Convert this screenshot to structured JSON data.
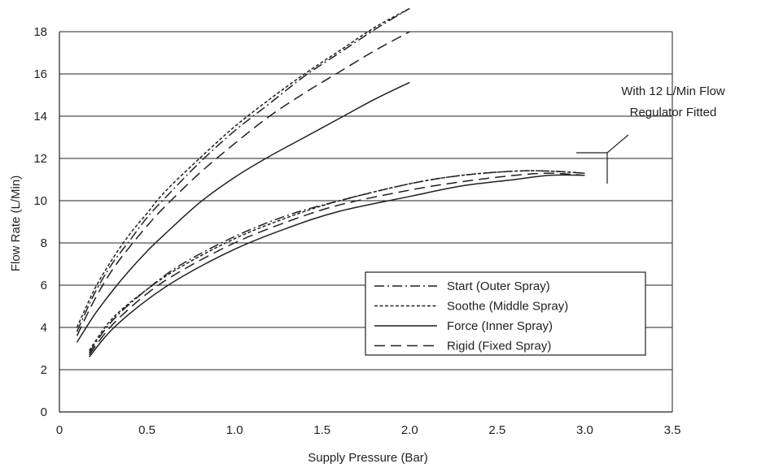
{
  "chart_data": {
    "type": "line",
    "xlabel": "Supply Pressure (Bar)",
    "ylabel": "Flow Rate (L/Min)",
    "xlim": [
      0,
      3.5
    ],
    "ylim": [
      0,
      18
    ],
    "x_ticks": [
      "0",
      "0.5",
      "1.0",
      "1.5",
      "2.0",
      "2.5",
      "3.0",
      "3.5"
    ],
    "y_ticks": [
      "0",
      "2",
      "4",
      "6",
      "8",
      "10",
      "12",
      "14",
      "16",
      "18"
    ],
    "grid": "horizontal",
    "legend_position": "lower-right",
    "annotation": {
      "line1": "With 12 L/Min Flow",
      "line2": "Regulator Fitted"
    },
    "series": [
      {
        "name": "Start (Outer Spray)",
        "style": "dash-dot",
        "group": "unregulated",
        "x": [
          0.1,
          0.2,
          0.3,
          0.4,
          0.5,
          0.6,
          0.8,
          1.0,
          1.2,
          1.4,
          1.6,
          1.8,
          2.0
        ],
        "y": [
          3.8,
          5.6,
          7.0,
          8.1,
          9.2,
          10.1,
          11.8,
          13.3,
          14.6,
          15.9,
          17.0,
          18.1,
          19.1
        ]
      },
      {
        "name": "Soothe (Middle Spray)",
        "style": "dotted",
        "group": "unregulated",
        "x": [
          0.1,
          0.2,
          0.3,
          0.4,
          0.5,
          0.6,
          0.8,
          1.0,
          1.2,
          1.4,
          1.6,
          1.8,
          2.0
        ],
        "y": [
          4.0,
          5.8,
          7.2,
          8.4,
          9.4,
          10.4,
          12.0,
          13.5,
          14.8,
          16.0,
          17.1,
          18.2,
          19.1
        ]
      },
      {
        "name": "Force (Inner Spray)",
        "style": "solid",
        "group": "unregulated",
        "x": [
          0.1,
          0.2,
          0.3,
          0.4,
          0.5,
          0.6,
          0.8,
          1.0,
          1.2,
          1.4,
          1.6,
          1.8,
          2.0
        ],
        "y": [
          3.3,
          4.6,
          5.7,
          6.7,
          7.6,
          8.4,
          9.9,
          11.1,
          12.1,
          13.0,
          13.9,
          14.8,
          15.6
        ]
      },
      {
        "name": "Rigid (Fixed Spray)",
        "style": "dashed",
        "group": "unregulated",
        "x": [
          0.1,
          0.2,
          0.3,
          0.4,
          0.5,
          0.6,
          0.8,
          1.0,
          1.2,
          1.4,
          1.6,
          1.8,
          2.0
        ],
        "y": [
          3.6,
          5.3,
          6.7,
          7.8,
          8.8,
          9.7,
          11.3,
          12.7,
          14.0,
          15.1,
          16.1,
          17.1,
          18.0
        ]
      },
      {
        "name": "Start (Outer Spray)",
        "style": "dash-dot",
        "group": "regulated",
        "x": [
          0.17,
          0.3,
          0.5,
          0.7,
          1.0,
          1.3,
          1.6,
          2.0,
          2.3,
          2.6,
          2.8,
          3.0
        ],
        "y": [
          2.8,
          4.3,
          5.8,
          7.0,
          8.3,
          9.3,
          10.0,
          10.8,
          11.2,
          11.4,
          11.4,
          11.3
        ]
      },
      {
        "name": "Soothe (Middle Spray)",
        "style": "dotted",
        "group": "regulated",
        "x": [
          0.17,
          0.3,
          0.5,
          0.7,
          1.0,
          1.3,
          1.6,
          2.0,
          2.3,
          2.6,
          2.8,
          3.0
        ],
        "y": [
          2.9,
          4.4,
          5.8,
          6.9,
          8.2,
          9.2,
          10.0,
          10.8,
          11.2,
          11.4,
          11.4,
          11.3
        ]
      },
      {
        "name": "Force (Inner Spray)",
        "style": "solid",
        "group": "regulated",
        "x": [
          0.17,
          0.3,
          0.5,
          0.7,
          1.0,
          1.3,
          1.6,
          2.0,
          2.3,
          2.6,
          2.8,
          3.0
        ],
        "y": [
          2.6,
          3.9,
          5.3,
          6.4,
          7.7,
          8.7,
          9.5,
          10.2,
          10.7,
          11.0,
          11.2,
          11.2
        ]
      },
      {
        "name": "Rigid (Fixed Spray)",
        "style": "dashed",
        "group": "regulated",
        "x": [
          0.17,
          0.3,
          0.5,
          0.7,
          1.0,
          1.3,
          1.6,
          2.0,
          2.3,
          2.6,
          2.8,
          3.0
        ],
        "y": [
          2.7,
          4.1,
          5.6,
          6.7,
          8.0,
          9.0,
          9.8,
          10.5,
          10.9,
          11.2,
          11.3,
          11.2
        ]
      }
    ],
    "legend": [
      {
        "label": "Start (Outer Spray)",
        "style": "dash-dot"
      },
      {
        "label": "Soothe (Middle Spray)",
        "style": "dotted"
      },
      {
        "label": "Force (Inner Spray)",
        "style": "solid"
      },
      {
        "label": "Rigid (Fixed Spray)",
        "style": "dashed"
      }
    ]
  }
}
